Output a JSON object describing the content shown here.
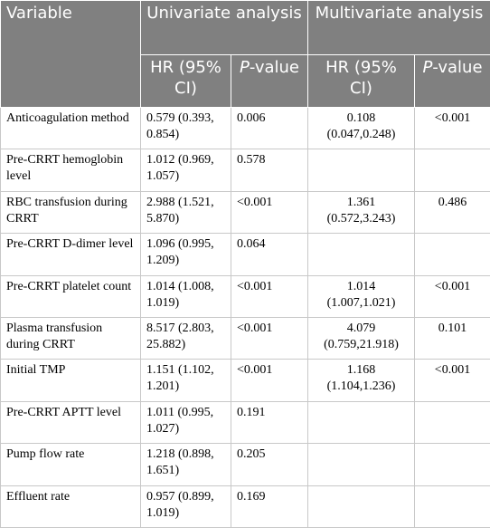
{
  "header": {
    "variable": "Variable",
    "univariate": "Univariate analysis",
    "multivariate": "Multivariate analysis",
    "subheaders": [
      {
        "hr": "HR (95% CI)",
        "p": [
          "P",
          "-value"
        ]
      },
      {
        "hr": "HR (95% CI)",
        "p": [
          "P",
          "-value"
        ]
      }
    ]
  },
  "table": {
    "rows": [
      [
        "Anticoagulation method",
        "0.579 (0.393, 0.854)",
        "0.006",
        "0.108 (0.047,0.248)",
        "<0.001"
      ],
      [
        "Pre-CRRT hemoglobin level",
        "1.012 (0.969, 1.057)",
        "0.578",
        null,
        null
      ],
      [
        "RBC transfusion during CRRT",
        "2.988 (1.521, 5.870)",
        "<0.001",
        "1.361 (0.572,3.243)",
        "0.486"
      ],
      [
        "Pre-CRRT D-dimer level",
        "1.096 (0.995, 1.209)",
        "0.064",
        null,
        null
      ],
      [
        "Pre-CRRT platelet count",
        "1.014 (1.008, 1.019)",
        "<0.001",
        "1.014 (1.007,1.021)",
        "<0.001"
      ],
      [
        "Plasma transfusion during CRRT",
        "8.517 (2.803, 25.882)",
        "<0.001",
        "4.079 (0.759,21.918)",
        "0.101"
      ],
      [
        "Initial TMP",
        "1.151 (1.102, 1.201)",
        "<0.001",
        "1.168 (1.104,1.236)",
        "<0.001"
      ],
      [
        "Pre-CRRT APTT level",
        "1.011 (0.995, 1.027)",
        "0.191",
        null,
        null
      ],
      [
        "Pump flow rate",
        "1.218 (0.898, 1.651)",
        "0.205",
        null,
        null
      ],
      [
        "Effluent rate",
        "0.957 (0.899, 1.019)",
        "0.169",
        null,
        null
      ]
    ]
  }
}
